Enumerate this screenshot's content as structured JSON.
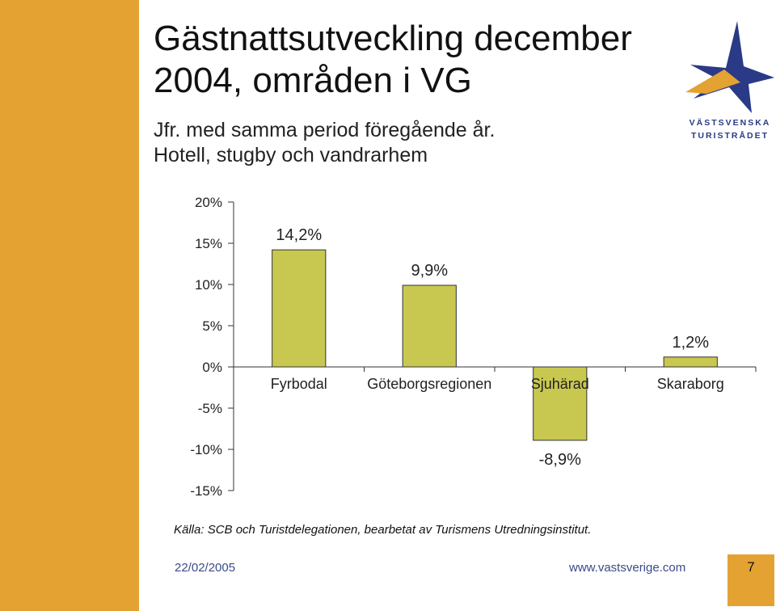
{
  "slide": {
    "title": "Gästnattsutveckling december 2004, områden i VG",
    "subtitle_line1": "Jfr. med samma period föregående år.",
    "subtitle_line2": "Hotell, stugby och vandrarhem",
    "source": "Källa: SCB och Turistdelegationen, bearbetat av Turismens Utredningsinstitut.",
    "date": "22/02/2005",
    "url": "www.vastsverige.com",
    "page_number": "7",
    "logo_line1": "VÄSTSVENSKA",
    "logo_line2": "TURISTRÅDET"
  },
  "colors": {
    "accent": "#e3a232",
    "bar_fill": "#c8c850",
    "bar_stroke": "#333333",
    "logo_blue": "#2a3a86"
  },
  "chart_data": {
    "type": "bar",
    "categories": [
      "Fyrbodal",
      "Göteborgsregionen",
      "Sjuhärad",
      "Skaraborg"
    ],
    "values": [
      14.2,
      9.9,
      -8.9,
      1.2
    ],
    "data_labels": [
      "14,2%",
      "9,9%",
      "-8,9%",
      "1,2%"
    ],
    "ylim": [
      -15,
      20
    ],
    "yticks": [
      20,
      15,
      10,
      5,
      0,
      -5,
      -10,
      -15
    ],
    "ytick_labels": [
      "20%",
      "15%",
      "10%",
      "5%",
      "0%",
      "-5%",
      "-10%",
      "-15%"
    ],
    "grid": false,
    "legend": "none"
  }
}
